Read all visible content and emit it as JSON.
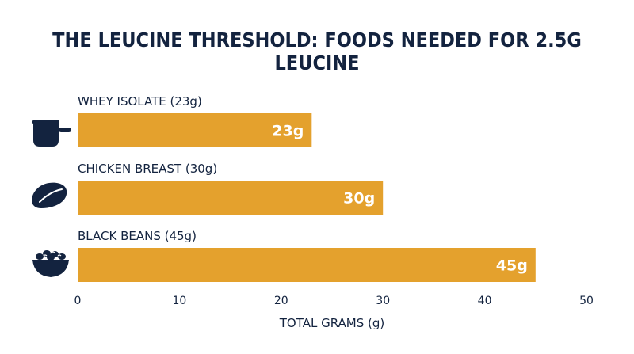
{
  "chart_data": {
    "type": "bar",
    "orientation": "horizontal",
    "title": "THE LEUCINE THRESHOLD: FOODS NEEDED FOR 2.5G LEUCINE",
    "xlabel": "TOTAL GRAMS (g)",
    "ylabel": "",
    "xlim": [
      0,
      50
    ],
    "xticks": [
      0,
      10,
      20,
      30,
      40,
      50
    ],
    "grid": false,
    "bar_color": "#E4A12D",
    "categories": [
      "WHEY ISOLATE (23g)",
      "CHICKEN BREAST (30g)",
      "BLACK BEANS (45g)"
    ],
    "values": [
      23,
      30,
      45
    ],
    "data_labels": [
      "23g",
      "30g",
      "45g"
    ],
    "icons": [
      "protein-scoop-icon",
      "chicken-breast-icon",
      "bean-bowl-icon"
    ]
  }
}
